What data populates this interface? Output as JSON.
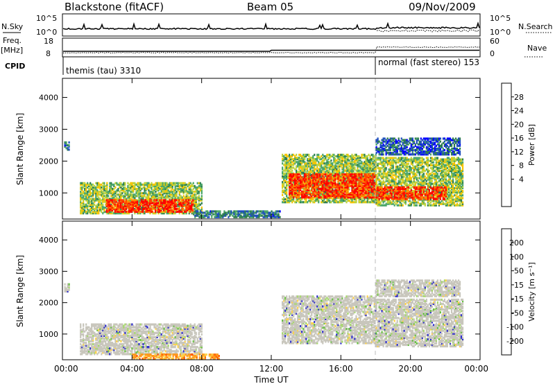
{
  "header": {
    "station": "Blackstone (fitACF)",
    "beam": "Beam 05",
    "date": "09/Nov/2009"
  },
  "summary_panels": {
    "nsky_label": "N.Sky",
    "nsky_ticks": [
      "10^5",
      "10^0"
    ],
    "nsearch_label": "N.Search",
    "nsearch_ticks": [
      "10^5",
      "10^0"
    ],
    "freq_label_1": "Freq.",
    "freq_label_2": "[MHz]",
    "freq_ticks": [
      "18",
      "8"
    ],
    "nave_label": "Nave",
    "nave_ticks": [
      "60",
      "0"
    ],
    "cpid_label": "CPID",
    "cpid_modes": [
      {
        "text": "themis (tau) 3310",
        "start_hour": 0
      },
      {
        "text": "normal (fast stereo) 153",
        "start_hour": 18
      }
    ]
  },
  "colorbars": {
    "power": {
      "label": "Power [dB]",
      "ticks": [
        "28",
        "24",
        "20",
        "16",
        "12",
        "8",
        "4"
      ],
      "colors": [
        "#0000ff",
        "#1f4fbf",
        "#2e7d4f",
        "#4aa66a",
        "#bcd33c",
        "#f5c400",
        "#ff8c00",
        "#ff4500",
        "#ff0000"
      ]
    },
    "velocity": {
      "label": "Velocity [m s⁻¹]",
      "ticks": [
        "200",
        "100",
        "50",
        "15",
        "-15",
        "-50",
        "-100",
        "-200"
      ],
      "colors": [
        "#2c2ccc",
        "#2e7d4f",
        "#66c040",
        "#a6d96a",
        "#c8c6bc",
        "#ffd24a",
        "#ff9a1e",
        "#ff5a00",
        "#ff0000"
      ]
    }
  },
  "chart_data": [
    {
      "type": "heatmap",
      "title": "",
      "quantity": "Power [dB]",
      "xlabel": "Time UT",
      "ylabel": "Slant Range [km]",
      "x_ticks": [
        "00:00",
        "04:00",
        "08:00",
        "12:00",
        "16:00",
        "20:00",
        "00:00"
      ],
      "y_ticks": [
        "1000",
        "2000",
        "3000",
        "4000"
      ],
      "xlim_hours": [
        0,
        24
      ],
      "ylim_km": [
        180,
        4600
      ],
      "colorscale_db": [
        0,
        30
      ],
      "regions": [
        {
          "t_start": 0.1,
          "t_end": 0.4,
          "r_low": 2350,
          "r_high": 2600,
          "power_db": 6
        },
        {
          "t_start": 1.0,
          "t_end": 8.0,
          "r_low": 350,
          "r_high": 1300,
          "power_db": 14
        },
        {
          "t_start": 2.5,
          "t_end": 7.5,
          "r_low": 400,
          "r_high": 800,
          "power_db": 26
        },
        {
          "t_start": 7.5,
          "t_end": 12.5,
          "r_low": 230,
          "r_high": 420,
          "power_db": 8
        },
        {
          "t_start": 12.6,
          "t_end": 18.0,
          "r_low": 700,
          "r_high": 2200,
          "power_db": 14
        },
        {
          "t_start": 13.0,
          "t_end": 18.0,
          "r_low": 850,
          "r_high": 1600,
          "power_db": 26
        },
        {
          "t_start": 18.0,
          "t_end": 23.0,
          "r_low": 600,
          "r_high": 2100,
          "power_db": 14
        },
        {
          "t_start": 18.0,
          "t_end": 22.0,
          "r_low": 800,
          "r_high": 1200,
          "power_db": 26
        },
        {
          "t_start": 18.0,
          "t_end": 22.8,
          "r_low": 2200,
          "r_high": 2700,
          "power_db": 6
        }
      ]
    },
    {
      "type": "heatmap",
      "title": "",
      "quantity": "Velocity [m s-1]",
      "xlabel": "Time UT",
      "ylabel": "Slant Range [km]",
      "x_ticks": [
        "00:00",
        "04:00",
        "08:00",
        "12:00",
        "16:00",
        "20:00",
        "00:00"
      ],
      "y_ticks": [
        "1000",
        "2000",
        "3000",
        "4000"
      ],
      "xlim_hours": [
        0,
        24
      ],
      "ylim_km": [
        180,
        4600
      ],
      "regions": [
        {
          "t_start": 0.1,
          "t_end": 0.4,
          "r_low": 2350,
          "r_high": 2600,
          "velocity": 0
        },
        {
          "t_start": 1.0,
          "t_end": 8.0,
          "r_low": 350,
          "r_high": 1300,
          "velocity": 0
        },
        {
          "t_start": 4.0,
          "t_end": 9.0,
          "r_low": 200,
          "r_high": 380,
          "velocity": -60
        },
        {
          "t_start": 12.6,
          "t_end": 18.0,
          "r_low": 700,
          "r_high": 2200,
          "velocity": 0
        },
        {
          "t_start": 18.0,
          "t_end": 23.0,
          "r_low": 600,
          "r_high": 2100,
          "velocity": 0
        },
        {
          "t_start": 18.0,
          "t_end": 22.8,
          "r_low": 2200,
          "r_high": 2700,
          "velocity": 0
        }
      ]
    }
  ]
}
